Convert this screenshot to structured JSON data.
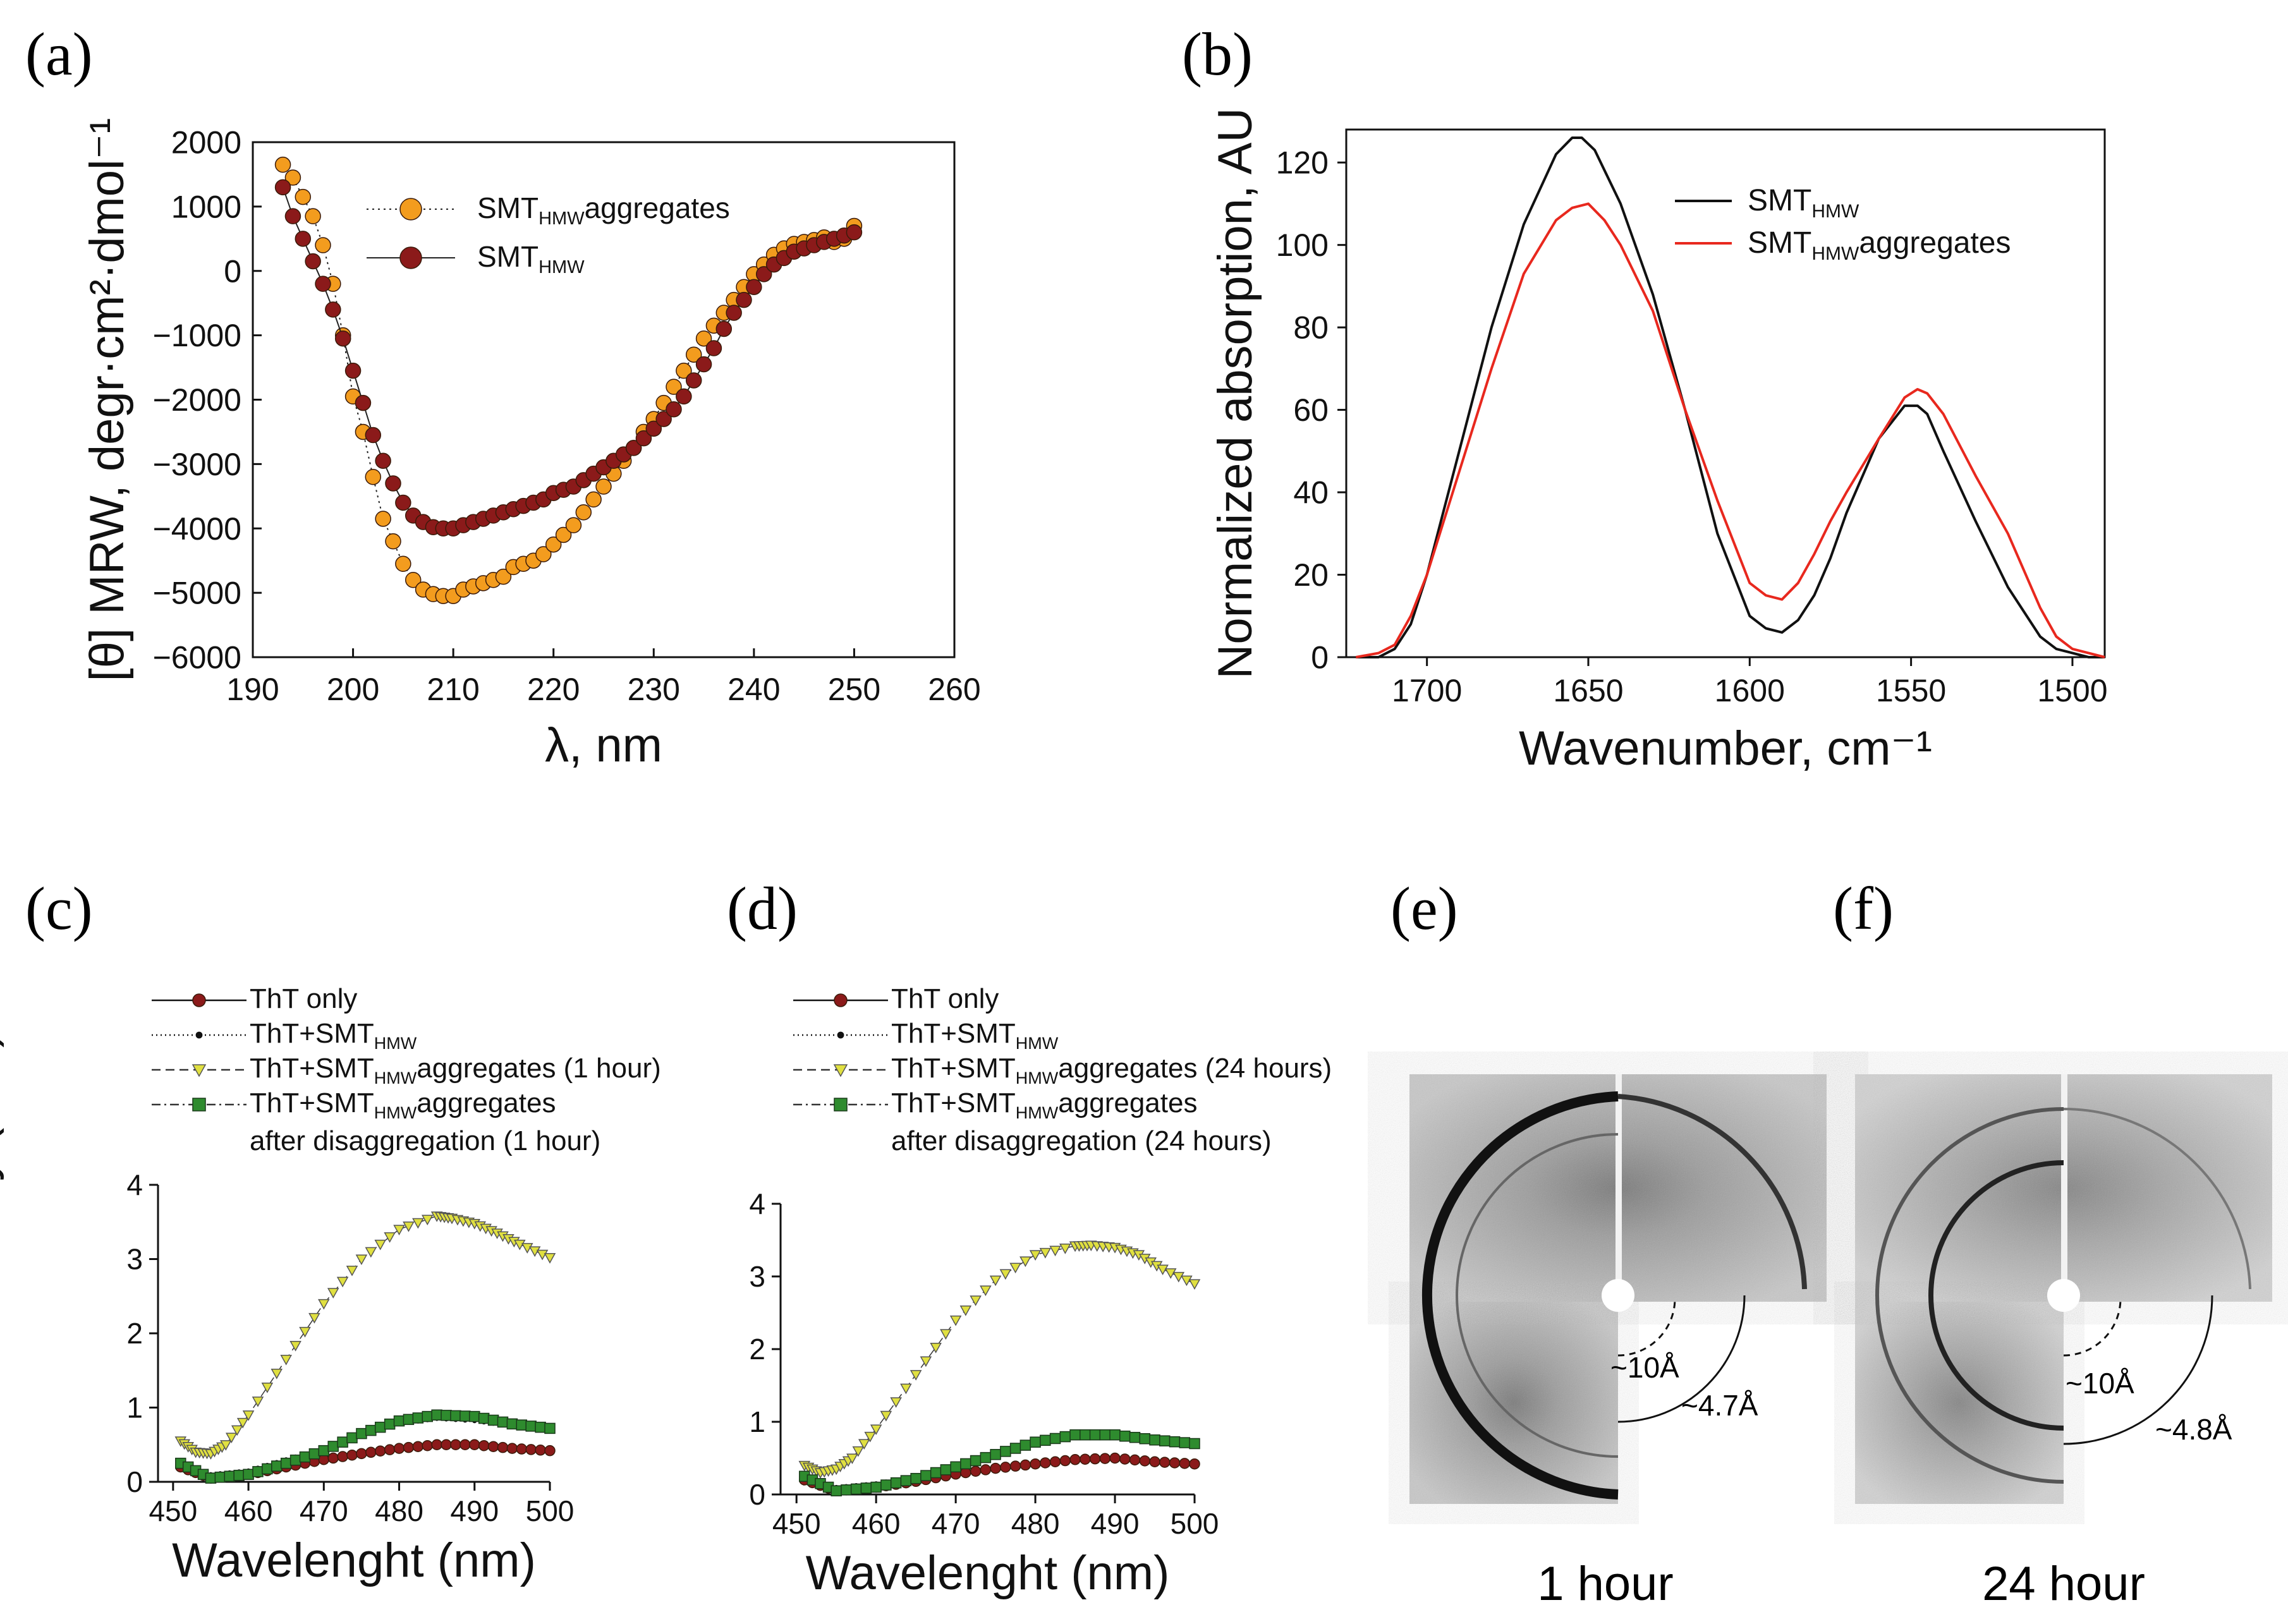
{
  "panels": {
    "a": {
      "label": "(a)"
    },
    "b": {
      "label": "(b)"
    },
    "c": {
      "label": "(c)"
    },
    "d": {
      "label": "(d)"
    },
    "e": {
      "label": "(e)",
      "caption": "1 hour",
      "ring_inner": "~10Å",
      "ring_outer": "~4.7Å"
    },
    "f": {
      "label": "(f)",
      "caption": "24 hour",
      "ring_inner": "~10Å",
      "ring_outer": "~4.8Å"
    }
  },
  "colors": {
    "orange": "#f39c1e",
    "darkred": "#8b1a1a",
    "yellow": "#e0e040",
    "green": "#2e8b2e",
    "red_line": "#e8281e",
    "black": "#111111"
  },
  "chart_data": [
    {
      "id": "a",
      "type": "scatter",
      "title": "",
      "xlabel": "λ, nm",
      "ylabel": "[θ] MRW, degr·cm²·dmol⁻¹",
      "xlim": [
        190,
        260
      ],
      "ylim": [
        -6000,
        2000
      ],
      "xticks": [
        190,
        200,
        210,
        220,
        230,
        240,
        250,
        260
      ],
      "yticks": [
        -6000,
        -5000,
        -4000,
        -3000,
        -2000,
        -1000,
        0,
        1000,
        2000
      ],
      "xtick_labels": [
        "190",
        "200",
        "210",
        "220",
        "230",
        "240",
        "250",
        "260"
      ],
      "ytick_labels": [
        "−6000",
        "−5000",
        "−4000",
        "−3000",
        "−2000",
        "−1000",
        "0",
        "1000",
        "2000"
      ],
      "legend": [
        {
          "base": "SMT",
          "sub": "HMW",
          "tail": "aggregates"
        },
        {
          "base": "SMT",
          "sub": "HMW",
          "tail": ""
        }
      ],
      "series": [
        {
          "name": "SMT HMW aggregates",
          "marker": "circle",
          "color": "#f39c1e",
          "line": "dotted",
          "x": [
            193,
            194,
            195,
            196,
            197,
            198,
            199,
            200,
            201,
            202,
            203,
            204,
            205,
            206,
            207,
            208,
            209,
            210,
            211,
            212,
            213,
            214,
            215,
            216,
            217,
            218,
            219,
            220,
            221,
            222,
            223,
            224,
            225,
            226,
            227,
            228,
            229,
            230,
            231,
            232,
            233,
            234,
            235,
            236,
            237,
            238,
            239,
            240,
            241,
            242,
            243,
            244,
            245,
            246,
            247,
            248,
            249,
            250
          ],
          "y": [
            1650,
            1450,
            1150,
            850,
            400,
            -200,
            -1000,
            -1950,
            -2500,
            -3200,
            -3850,
            -4200,
            -4550,
            -4800,
            -4950,
            -5020,
            -5050,
            -5050,
            -4950,
            -4900,
            -4850,
            -4800,
            -4750,
            -4600,
            -4550,
            -4500,
            -4400,
            -4250,
            -4100,
            -3950,
            -3750,
            -3550,
            -3350,
            -3150,
            -2950,
            -2750,
            -2500,
            -2300,
            -2050,
            -1800,
            -1550,
            -1300,
            -1050,
            -850,
            -650,
            -450,
            -250,
            -50,
            100,
            250,
            350,
            420,
            450,
            480,
            520,
            450,
            500,
            700
          ]
        },
        {
          "name": "SMT HMW",
          "marker": "circle",
          "color": "#8b1a1a",
          "line": "solid",
          "x": [
            193,
            194,
            195,
            196,
            197,
            198,
            199,
            200,
            201,
            202,
            203,
            204,
            205,
            206,
            207,
            208,
            209,
            210,
            211,
            212,
            213,
            214,
            215,
            216,
            217,
            218,
            219,
            220,
            221,
            222,
            223,
            224,
            225,
            226,
            227,
            228,
            229,
            230,
            231,
            232,
            233,
            234,
            235,
            236,
            237,
            238,
            239,
            240,
            241,
            242,
            243,
            244,
            245,
            246,
            247,
            248,
            249,
            250
          ],
          "y": [
            1300,
            850,
            500,
            150,
            -200,
            -600,
            -1050,
            -1550,
            -2050,
            -2550,
            -2950,
            -3300,
            -3600,
            -3800,
            -3900,
            -3980,
            -4000,
            -4000,
            -3950,
            -3900,
            -3850,
            -3800,
            -3750,
            -3700,
            -3650,
            -3600,
            -3550,
            -3450,
            -3400,
            -3350,
            -3250,
            -3150,
            -3050,
            -2950,
            -2850,
            -2750,
            -2600,
            -2450,
            -2300,
            -2150,
            -1950,
            -1700,
            -1450,
            -1200,
            -900,
            -650,
            -450,
            -250,
            -50,
            100,
            200,
            300,
            350,
            400,
            450,
            500,
            550,
            600
          ]
        }
      ]
    },
    {
      "id": "b",
      "type": "line",
      "title": "",
      "xlabel": "Wavenumber, cm⁻¹",
      "ylabel": "Normalized absorption, AU",
      "xlim": [
        1725,
        1490
      ],
      "ylim": [
        0,
        128
      ],
      "xticks": [
        1700,
        1650,
        1600,
        1550,
        1500
      ],
      "yticks": [
        0,
        20,
        40,
        60,
        80,
        100,
        120
      ],
      "xtick_labels": [
        "1700",
        "1650",
        "1600",
        "1550",
        "1500"
      ],
      "ytick_labels": [
        "0",
        "20",
        "40",
        "60",
        "80",
        "100",
        "120"
      ],
      "legend": [
        {
          "base": "SMT",
          "sub": "HMW",
          "tail": ""
        },
        {
          "base": "SMT",
          "sub": "HMW",
          "tail": "aggregates"
        }
      ],
      "series": [
        {
          "name": "SMT HMW",
          "color": "#111111",
          "x": [
            1722,
            1715,
            1710,
            1705,
            1700,
            1690,
            1680,
            1670,
            1660,
            1655,
            1652,
            1648,
            1640,
            1630,
            1620,
            1610,
            1600,
            1595,
            1590,
            1585,
            1580,
            1575,
            1570,
            1560,
            1552,
            1548,
            1545,
            1540,
            1530,
            1520,
            1510,
            1505,
            1500,
            1495,
            1490
          ],
          "y": [
            0,
            0,
            2,
            8,
            20,
            50,
            80,
            105,
            122,
            126,
            126,
            123,
            110,
            88,
            60,
            30,
            10,
            7,
            6,
            9,
            15,
            24,
            35,
            53,
            61,
            61,
            59,
            50,
            33,
            17,
            5,
            2,
            1,
            0,
            0
          ]
        },
        {
          "name": "SMT HMW aggregates",
          "color": "#e8281e",
          "x": [
            1722,
            1715,
            1710,
            1705,
            1700,
            1690,
            1680,
            1670,
            1660,
            1655,
            1650,
            1645,
            1640,
            1630,
            1620,
            1610,
            1600,
            1595,
            1590,
            1585,
            1580,
            1575,
            1570,
            1560,
            1552,
            1548,
            1545,
            1540,
            1530,
            1520,
            1510,
            1505,
            1500,
            1495,
            1490
          ],
          "y": [
            0,
            1,
            3,
            10,
            20,
            45,
            70,
            93,
            106,
            109,
            110,
            106,
            100,
            84,
            60,
            38,
            18,
            15,
            14,
            18,
            25,
            33,
            40,
            53,
            63,
            65,
            64,
            59,
            44,
            30,
            12,
            5,
            2,
            1,
            0
          ]
        }
      ]
    },
    {
      "id": "c",
      "type": "scatter",
      "title": "",
      "xlabel": "Wavelenght (nm)",
      "ylabel": "Fluorescence intensity (a.u.)",
      "xlim": [
        448,
        500
      ],
      "ylim": [
        0,
        4
      ],
      "xticks": [
        450,
        460,
        470,
        480,
        490,
        500
      ],
      "yticks": [
        0,
        1,
        2,
        3,
        4
      ],
      "xtick_labels": [
        "450",
        "460",
        "470",
        "480",
        "490",
        "500"
      ],
      "ytick_labels": [
        "0",
        "1",
        "2",
        "3",
        "4"
      ],
      "legend": [
        {
          "base": "ThT only",
          "sub": "",
          "tail": ""
        },
        {
          "base": "ThT+SMT",
          "sub": "HMW",
          "tail": ""
        },
        {
          "base": "ThT+SMT",
          "sub": "HMW",
          "tail": "aggregates (1 hour)"
        },
        {
          "base": "ThT+SMT",
          "sub": "HMW",
          "tail": "aggregates"
        }
      ],
      "legend_extra": "after disaggregation (1 hour)",
      "series": [
        {
          "name": "ThT only",
          "marker": "circle",
          "color": "#8b1a1a",
          "x": [
            451,
            455,
            460,
            465,
            470,
            475,
            480,
            485,
            490,
            495,
            500
          ],
          "y": [
            0.2,
            0.05,
            0.1,
            0.2,
            0.3,
            0.38,
            0.45,
            0.5,
            0.5,
            0.45,
            0.42
          ]
        },
        {
          "name": "ThT+SMT HMW",
          "marker": "dot",
          "color": "#111111",
          "x": [
            451,
            455,
            460,
            465,
            470,
            475,
            480,
            485,
            490,
            495,
            500
          ],
          "y": [
            0.25,
            0.1,
            0.15,
            0.3,
            0.45,
            0.62,
            0.78,
            0.85,
            0.82,
            0.75,
            0.7
          ]
        },
        {
          "name": "ThT+SMT HMW aggregates (1 hour)",
          "marker": "triangle",
          "color": "#e0e040",
          "x": [
            451,
            453,
            455,
            457,
            460,
            465,
            470,
            475,
            480,
            485,
            487,
            490,
            493,
            496,
            500
          ],
          "y": [
            0.55,
            0.4,
            0.38,
            0.5,
            0.9,
            1.65,
            2.4,
            3.0,
            3.4,
            3.58,
            3.55,
            3.48,
            3.35,
            3.2,
            3.02
          ]
        },
        {
          "name": "ThT+SMT HMW aggregates after disaggregation (1 hour)",
          "marker": "square",
          "color": "#2e8b2e",
          "x": [
            451,
            455,
            460,
            465,
            470,
            475,
            480,
            485,
            490,
            495,
            500
          ],
          "y": [
            0.25,
            0.05,
            0.1,
            0.25,
            0.42,
            0.65,
            0.82,
            0.9,
            0.88,
            0.78,
            0.72
          ]
        }
      ]
    },
    {
      "id": "d",
      "type": "scatter",
      "title": "",
      "xlabel": "Wavelenght (nm)",
      "ylabel": "",
      "xlim": [
        448,
        500
      ],
      "ylim": [
        0,
        4
      ],
      "xticks": [
        450,
        460,
        470,
        480,
        490,
        500
      ],
      "yticks": [
        0,
        1,
        2,
        3,
        4
      ],
      "xtick_labels": [
        "450",
        "460",
        "470",
        "480",
        "490",
        "500"
      ],
      "ytick_labels": [
        "0",
        "1",
        "2",
        "3",
        "4"
      ],
      "legend": [
        {
          "base": "ThT only",
          "sub": "",
          "tail": ""
        },
        {
          "base": "ThT+SMT",
          "sub": "HMW",
          "tail": ""
        },
        {
          "base": "ThT+SMT",
          "sub": "HMW",
          "tail": "aggregates (24 hours)"
        },
        {
          "base": "ThT+SMT",
          "sub": "HMW",
          "tail": "aggregates"
        }
      ],
      "legend_extra": "after disaggregation (24 hours)",
      "series": [
        {
          "name": "ThT only",
          "marker": "circle",
          "color": "#8b1a1a",
          "x": [
            451,
            455,
            460,
            465,
            470,
            475,
            480,
            485,
            490,
            495,
            500
          ],
          "y": [
            0.2,
            0.05,
            0.1,
            0.18,
            0.28,
            0.36,
            0.42,
            0.48,
            0.5,
            0.45,
            0.42
          ]
        },
        {
          "name": "ThT+SMT HMW",
          "marker": "dot",
          "color": "#111111",
          "x": [
            451,
            455,
            460,
            465,
            470,
            475,
            480,
            485,
            490,
            495,
            500
          ],
          "y": [
            0.25,
            0.1,
            0.15,
            0.25,
            0.4,
            0.55,
            0.7,
            0.8,
            0.82,
            0.75,
            0.7
          ]
        },
        {
          "name": "ThT+SMT HMW aggregates (24 hours)",
          "marker": "triangle",
          "color": "#e0e040",
          "x": [
            451,
            453,
            455,
            457,
            460,
            465,
            470,
            475,
            480,
            485,
            487,
            490,
            493,
            496,
            500
          ],
          "y": [
            0.4,
            0.3,
            0.35,
            0.5,
            0.9,
            1.65,
            2.4,
            2.95,
            3.3,
            3.42,
            3.43,
            3.4,
            3.3,
            3.1,
            2.9
          ]
        },
        {
          "name": "ThT+SMT HMW aggregates after disaggregation (24 hours)",
          "marker": "square",
          "color": "#2e8b2e",
          "x": [
            451,
            455,
            460,
            465,
            470,
            475,
            480,
            485,
            490,
            495,
            500
          ],
          "y": [
            0.25,
            0.05,
            0.1,
            0.22,
            0.38,
            0.55,
            0.72,
            0.82,
            0.82,
            0.75,
            0.7
          ]
        }
      ]
    }
  ]
}
